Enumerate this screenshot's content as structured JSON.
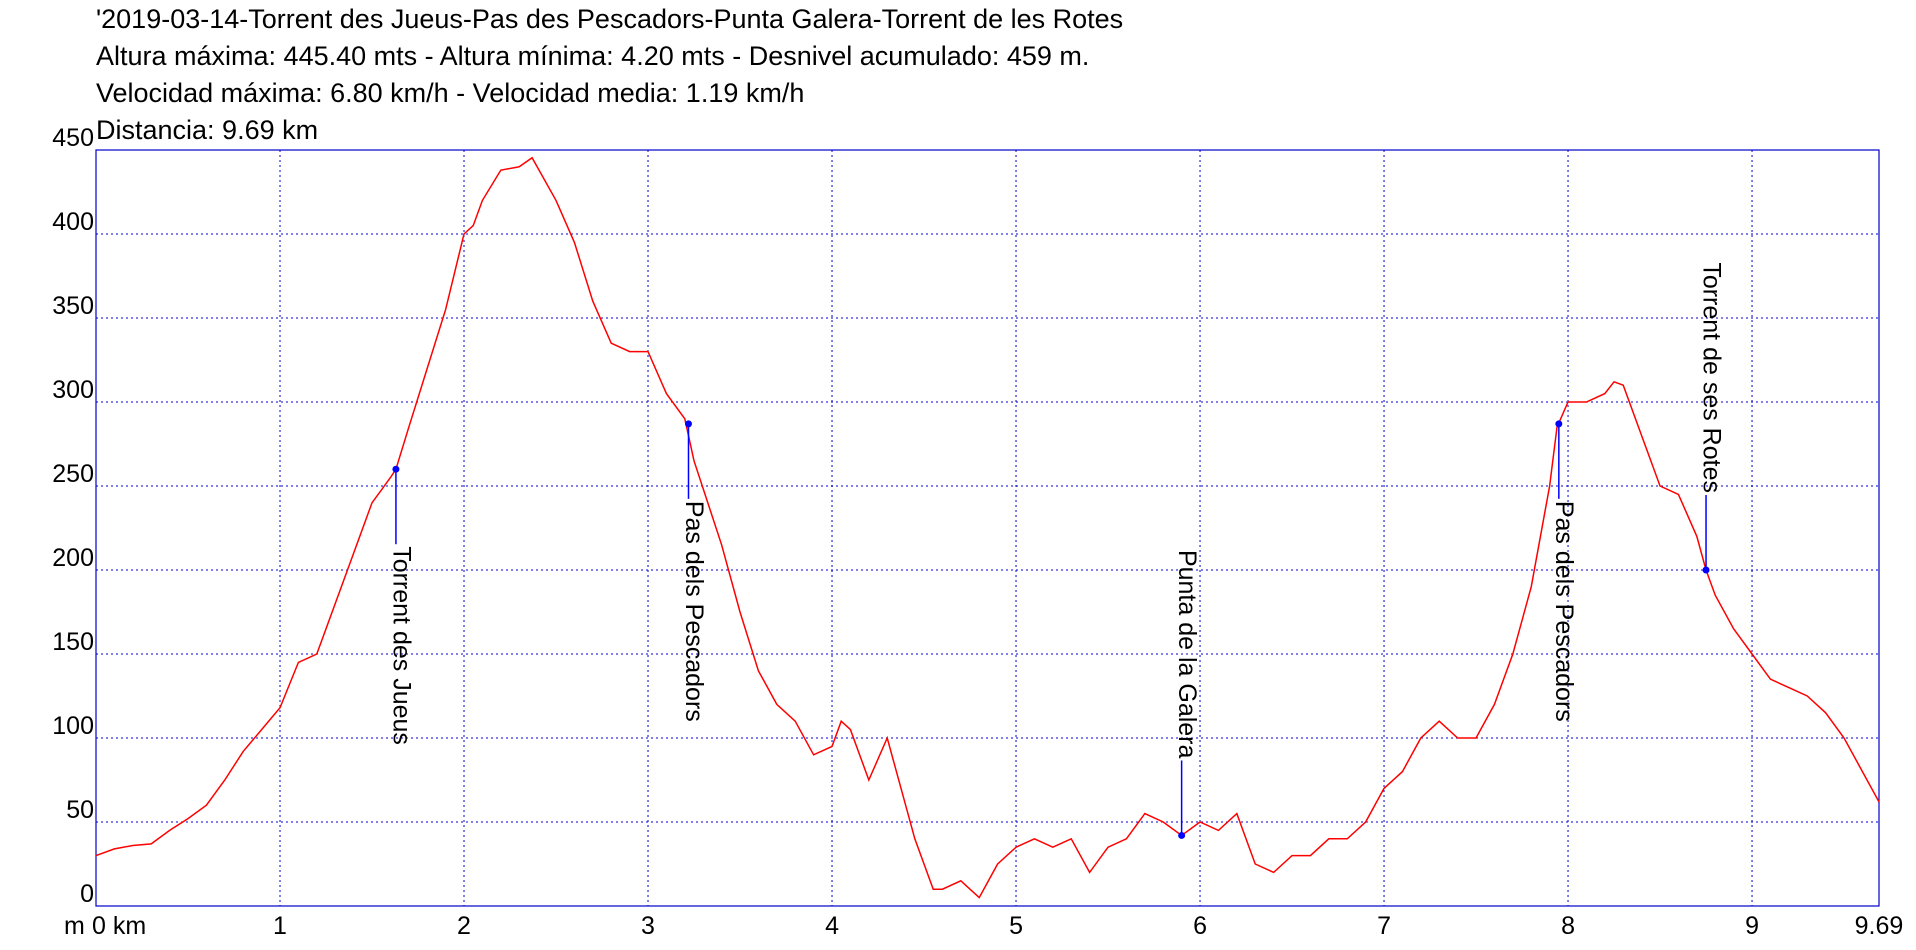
{
  "chart_data": {
    "type": "line",
    "title": "'2019-03-14-Torrent des Jueus-Pas des Pescadors-Punta Galera-Torrent de les Rotes",
    "subtitles": [
      "Altura máxima: 445.40 mts - Altura mínima: 4.20 mts - Desnivel acumulado: 459 m.",
      "Velocidad máxima: 6.80 km/h - Velocidad media: 1.19 km/h",
      "Distancia: 9.69 km"
    ],
    "y_unit": "m",
    "x": [
      0,
      0.1,
      0.2,
      0.3,
      0.4,
      0.5,
      0.6,
      0.7,
      0.8,
      0.9,
      1.0,
      1.1,
      1.2,
      1.3,
      1.4,
      1.5,
      1.6,
      1.63,
      1.7,
      1.8,
      1.9,
      2.0,
      2.05,
      2.1,
      2.2,
      2.3,
      2.37,
      2.5,
      2.6,
      2.7,
      2.8,
      2.9,
      3.0,
      3.1,
      3.2,
      3.25,
      3.4,
      3.5,
      3.6,
      3.7,
      3.8,
      3.9,
      4.0,
      4.05,
      4.1,
      4.2,
      4.3,
      4.35,
      4.45,
      4.55,
      4.6,
      4.7,
      4.8,
      4.9,
      5.0,
      5.1,
      5.2,
      5.3,
      5.4,
      5.5,
      5.6,
      5.7,
      5.8,
      5.9,
      6.0,
      6.1,
      6.2,
      6.3,
      6.4,
      6.5,
      6.6,
      6.7,
      6.8,
      6.9,
      7.0,
      7.1,
      7.2,
      7.3,
      7.4,
      7.5,
      7.6,
      7.7,
      7.8,
      7.9,
      7.94,
      8.0,
      8.1,
      8.2,
      8.25,
      8.3,
      8.4,
      8.5,
      8.6,
      8.7,
      8.75,
      8.8,
      8.9,
      9.0,
      9.1,
      9.2,
      9.3,
      9.4,
      9.5,
      9.6,
      9.69
    ],
    "series": [
      {
        "color": "#ff0000",
        "values": [
          30,
          34,
          36,
          37,
          45,
          52,
          60,
          75,
          92,
          105,
          118,
          145,
          150,
          180,
          210,
          240,
          255,
          260,
          285,
          320,
          355,
          400,
          405,
          420,
          438,
          440,
          445.4,
          420,
          395,
          360,
          335,
          330,
          330,
          305,
          290,
          265,
          215,
          175,
          140,
          120,
          110,
          90,
          95,
          110,
          105,
          75,
          100,
          80,
          40,
          10,
          10,
          15,
          5,
          25,
          35,
          40,
          35,
          40,
          20,
          35,
          40,
          55,
          50,
          42,
          50,
          45,
          55,
          25,
          20,
          30,
          30,
          40,
          40,
          50,
          70,
          80,
          100,
          110,
          100,
          100,
          120,
          150,
          190,
          250,
          285,
          300,
          300,
          305,
          312,
          310,
          280,
          250,
          245,
          220,
          200,
          185,
          165,
          150,
          135,
          130,
          125,
          115,
          100,
          80,
          62
        ]
      }
    ],
    "waypoints": [
      {
        "label": "Torrent des Jueus",
        "x": 1.63,
        "y": 260,
        "side": "below"
      },
      {
        "label": "Pas dels Pescadors",
        "x": 3.22,
        "y": 287,
        "side": "below"
      },
      {
        "label": "Punta de la Galera",
        "x": 5.9,
        "y": 42,
        "side": "above"
      },
      {
        "label": "Pas dels Pescadors",
        "x": 7.95,
        "y": 287,
        "side": "below"
      },
      {
        "label": "Torrent de ses Rotes",
        "x": 8.75,
        "y": 200,
        "side": "above"
      }
    ],
    "marker_color": "#0000ff",
    "xlim": [
      0,
      9.69
    ],
    "xticks": [
      {
        "value": 0,
        "label": "0 km"
      },
      1,
      2,
      3,
      4,
      5,
      6,
      7,
      8,
      9,
      9.69
    ],
    "ylim": [
      0,
      450
    ],
    "yticks": [
      0,
      50,
      100,
      150,
      200,
      250,
      300,
      350,
      400,
      450
    ],
    "grid": true,
    "grid_color": "#0000cc"
  }
}
